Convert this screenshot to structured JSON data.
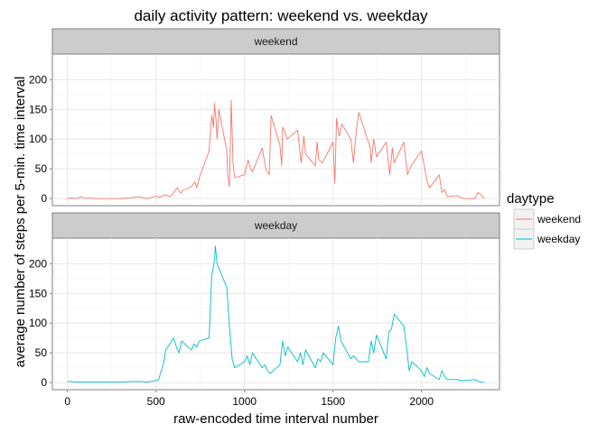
{
  "chart_data": {
    "type": "line",
    "title": "daily activity pattern: weekend vs. weekday",
    "xlabel": "raw-encoded time interval number",
    "ylabel": "average number of steps per 5-min. time interval",
    "xlim": [
      -85,
      2440
    ],
    "ylim": [
      -12,
      243
    ],
    "x_ticks": [
      0,
      500,
      1000,
      1500,
      2000
    ],
    "y_ticks": [
      0,
      50,
      100,
      150,
      200
    ],
    "grid": true,
    "legend": {
      "title": "daytype",
      "position": "right"
    },
    "facets": [
      "weekend",
      "weekday"
    ],
    "series": [
      {
        "name": "weekend",
        "facet": "weekend",
        "color": "#F8766D",
        "x": [
          0,
          20,
          50,
          80,
          100,
          120,
          150,
          200,
          250,
          300,
          350,
          400,
          450,
          500,
          520,
          550,
          580,
          600,
          620,
          640,
          650,
          700,
          720,
          730,
          745,
          800,
          815,
          825,
          830,
          840,
          845,
          855,
          900,
          905,
          915,
          925,
          935,
          945,
          1000,
          1020,
          1035,
          1045,
          1100,
          1120,
          1140,
          1150,
          1200,
          1210,
          1215,
          1230,
          1240,
          1300,
          1320,
          1335,
          1345,
          1400,
          1410,
          1420,
          1440,
          1500,
          1510,
          1520,
          1535,
          1550,
          1600,
          1615,
          1630,
          1645,
          1700,
          1710,
          1715,
          1730,
          1745,
          1800,
          1820,
          1835,
          1845,
          1900,
          1920,
          1940,
          2000,
          2015,
          2030,
          2045,
          2100,
          2115,
          2130,
          2145,
          2200,
          2230,
          2300,
          2320,
          2340,
          2355
        ],
        "y": [
          0,
          1,
          0,
          3,
          0,
          1,
          0,
          0,
          0,
          0,
          1,
          3,
          0,
          4,
          2,
          6,
          3,
          10,
          18,
          9,
          13,
          20,
          28,
          18,
          35,
          80,
          140,
          120,
          160,
          130,
          100,
          150,
          80,
          40,
          20,
          165,
          60,
          35,
          40,
          65,
          50,
          45,
          85,
          50,
          40,
          140,
          90,
          55,
          120,
          110,
          100,
          115,
          60,
          105,
          75,
          55,
          95,
          65,
          60,
          95,
          25,
          135,
          105,
          125,
          100,
          60,
          110,
          145,
          95,
          85,
          60,
          100,
          70,
          95,
          40,
          85,
          60,
          95,
          40,
          55,
          80,
          55,
          30,
          18,
          40,
          10,
          15,
          3,
          5,
          0,
          0,
          10,
          5,
          0
        ]
      },
      {
        "name": "weekday",
        "facet": "weekday",
        "color": "#00BFC4",
        "x": [
          0,
          50,
          100,
          200,
          300,
          400,
          450,
          500,
          515,
          530,
          545,
          555,
          600,
          615,
          630,
          645,
          700,
          715,
          730,
          745,
          800,
          815,
          830,
          835,
          845,
          900,
          915,
          930,
          945,
          1000,
          1015,
          1030,
          1045,
          1100,
          1115,
          1130,
          1145,
          1200,
          1215,
          1230,
          1245,
          1300,
          1315,
          1330,
          1345,
          1400,
          1415,
          1430,
          1445,
          1500,
          1515,
          1530,
          1545,
          1600,
          1615,
          1630,
          1645,
          1700,
          1715,
          1730,
          1745,
          1800,
          1815,
          1830,
          1845,
          1900,
          1915,
          1930,
          1945,
          2000,
          2015,
          2030,
          2045,
          2100,
          2115,
          2130,
          2145,
          2200,
          2230,
          2300,
          2330,
          2355
        ],
        "y": [
          2,
          1,
          1,
          1,
          1,
          2,
          1,
          3,
          5,
          20,
          35,
          55,
          75,
          60,
          50,
          70,
          55,
          65,
          60,
          70,
          75,
          180,
          205,
          230,
          200,
          160,
          95,
          40,
          25,
          35,
          45,
          30,
          50,
          25,
          30,
          20,
          15,
          30,
          70,
          45,
          60,
          35,
          50,
          30,
          55,
          25,
          40,
          35,
          50,
          30,
          75,
          95,
          70,
          40,
          45,
          40,
          35,
          35,
          70,
          50,
          80,
          40,
          85,
          90,
          115,
          95,
          60,
          20,
          35,
          20,
          10,
          25,
          15,
          5,
          20,
          10,
          5,
          5,
          3,
          5,
          1,
          0
        ]
      }
    ]
  }
}
